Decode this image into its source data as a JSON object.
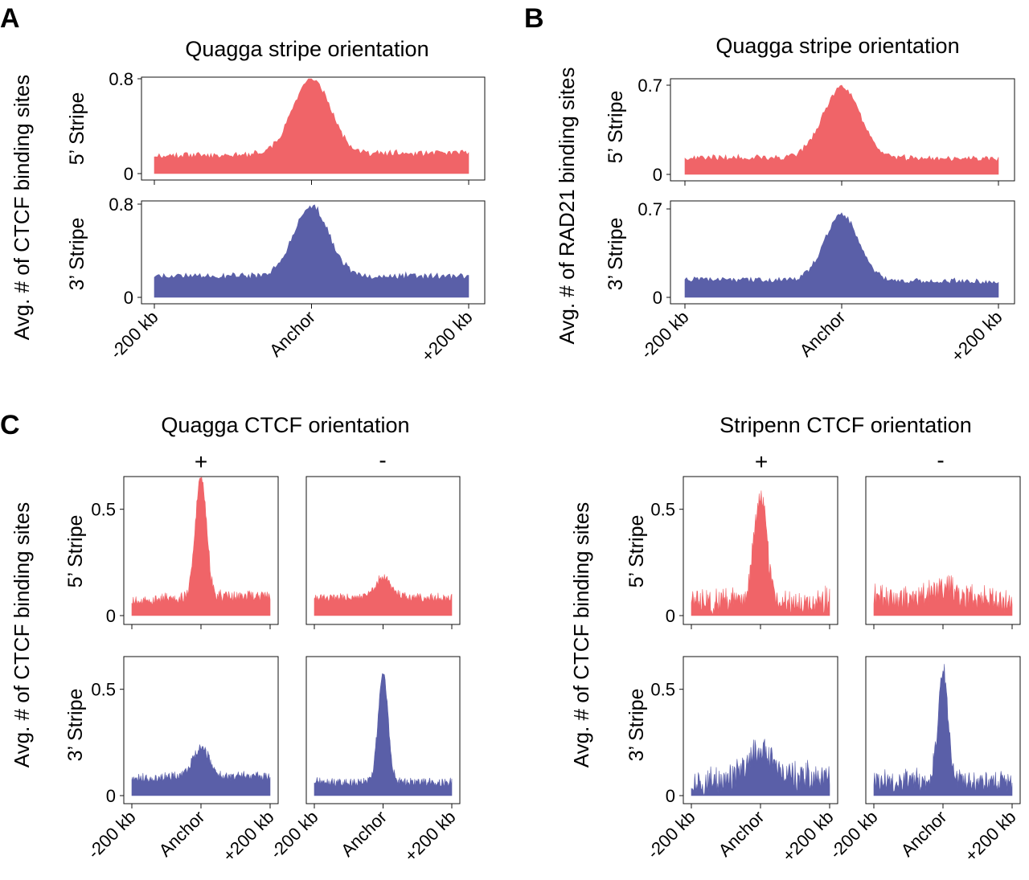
{
  "colors": {
    "five_prime": "#F06468",
    "three_prime": "#5A5FA8"
  },
  "panels": {
    "A": "A",
    "B": "B",
    "C": "C"
  },
  "titles": {
    "A": "Quagga stripe orientation",
    "B": "Quagga stripe orientation",
    "C_left": "Quagga CTCF orientation",
    "C_right": "Stripenn CTCF orientation"
  },
  "ylabels": {
    "A": "Avg. # of CTCF binding sites",
    "B": "Avg. # of RAD21 binding sites",
    "C_left": "Avg. # of CTCF binding sites",
    "C_right": "Avg. # of CTCF binding sites"
  },
  "row_labels": {
    "five": "5’ Stripe",
    "three": "3’ Stripe"
  },
  "orientation_labels": {
    "plus": "+",
    "minus": "-"
  },
  "x_ticks": [
    "-200 kb",
    "Anchor",
    "+200 kb"
  ],
  "chart_data": [
    {
      "id": "A-5",
      "type": "area",
      "panel": "A",
      "row": "5' Stripe",
      "color": "#F06468",
      "ylim": [
        0,
        0.8
      ],
      "yticks": [
        "0",
        "0.8"
      ],
      "baseline": 0.15,
      "peak": 0.8,
      "right": 0.17,
      "width": 0.06,
      "noise": 0.025,
      "seed": 11
    },
    {
      "id": "A-3",
      "type": "area",
      "panel": "A",
      "row": "3' Stripe",
      "color": "#5A5FA8",
      "ylim": [
        0,
        0.8
      ],
      "yticks": [
        "0",
        "0.8"
      ],
      "baseline": 0.18,
      "peak": 0.78,
      "right": 0.18,
      "width": 0.055,
      "noise": 0.025,
      "seed": 23
    },
    {
      "id": "B-5",
      "type": "area",
      "panel": "B",
      "row": "5' Stripe",
      "color": "#F06468",
      "ylim": [
        0,
        0.7
      ],
      "yticks": [
        "0",
        "0.7"
      ],
      "baseline": 0.13,
      "peak": 0.68,
      "right": 0.12,
      "width": 0.06,
      "noise": 0.02,
      "seed": 37
    },
    {
      "id": "B-3",
      "type": "area",
      "panel": "B",
      "row": "3' Stripe",
      "color": "#5A5FA8",
      "ylim": [
        0,
        0.7
      ],
      "yticks": [
        "0",
        "0.7"
      ],
      "baseline": 0.14,
      "peak": 0.65,
      "right": 0.12,
      "width": 0.055,
      "noise": 0.02,
      "seed": 41
    },
    {
      "id": "C-Q-5-plus",
      "type": "area",
      "panel": "C Quagga",
      "row": "5' Stripe",
      "orientation": "+",
      "color": "#F06468",
      "ylim": [
        0,
        0.65
      ],
      "yticks": [
        "0",
        "0.5"
      ],
      "baseline": 0.07,
      "peak": 0.65,
      "right": 0.09,
      "width": 0.04,
      "noise": 0.025,
      "seed": 53
    },
    {
      "id": "C-Q-5-minus",
      "type": "area",
      "panel": "C Quagga",
      "row": "5' Stripe",
      "orientation": "-",
      "color": "#F06468",
      "ylim": [
        0,
        0.65
      ],
      "yticks": [],
      "baseline": 0.08,
      "peak": 0.17,
      "right": 0.08,
      "width": 0.06,
      "noise": 0.02,
      "seed": 61
    },
    {
      "id": "C-Q-3-plus",
      "type": "area",
      "panel": "C Quagga",
      "row": "3' Stripe",
      "orientation": "+",
      "color": "#5A5FA8",
      "ylim": [
        0,
        0.65
      ],
      "yticks": [
        "0",
        "0.5"
      ],
      "baseline": 0.08,
      "peak": 0.22,
      "right": 0.09,
      "width": 0.06,
      "noise": 0.02,
      "seed": 67
    },
    {
      "id": "C-Q-3-minus",
      "type": "area",
      "panel": "C Quagga",
      "row": "3' Stripe",
      "orientation": "-",
      "color": "#5A5FA8",
      "ylim": [
        0,
        0.65
      ],
      "yticks": [],
      "baseline": 0.06,
      "peak": 0.58,
      "right": 0.06,
      "width": 0.035,
      "noise": 0.02,
      "seed": 71
    },
    {
      "id": "C-S-5-plus",
      "type": "area",
      "panel": "C Stripenn",
      "row": "5' Stripe",
      "orientation": "+",
      "color": "#F06468",
      "ylim": [
        0,
        0.65
      ],
      "yticks": [
        "0",
        "0.5"
      ],
      "baseline": 0.06,
      "peak": 0.55,
      "right": 0.06,
      "width": 0.045,
      "noise": 0.06,
      "seed": 83
    },
    {
      "id": "C-S-5-minus",
      "type": "area",
      "panel": "C Stripenn",
      "row": "5' Stripe",
      "orientation": "-",
      "color": "#F06468",
      "ylim": [
        0,
        0.65
      ],
      "yticks": [],
      "baseline": 0.07,
      "peak": 0.13,
      "right": 0.06,
      "width": 0.09,
      "noise": 0.06,
      "seed": 89
    },
    {
      "id": "C-S-3-plus",
      "type": "area",
      "panel": "C Stripenn",
      "row": "3' Stripe",
      "orientation": "+",
      "color": "#5A5FA8",
      "ylim": [
        0,
        0.65
      ],
      "yticks": [
        "0",
        "0.5"
      ],
      "baseline": 0.06,
      "peak": 0.2,
      "right": 0.08,
      "width": 0.09,
      "noise": 0.06,
      "seed": 97
    },
    {
      "id": "C-S-3-minus",
      "type": "area",
      "panel": "C Stripenn",
      "row": "3' Stripe",
      "orientation": "-",
      "color": "#5A5FA8",
      "ylim": [
        0,
        0.65
      ],
      "yticks": [],
      "baseline": 0.06,
      "peak": 0.58,
      "right": 0.06,
      "width": 0.035,
      "noise": 0.05,
      "seed": 101
    }
  ]
}
